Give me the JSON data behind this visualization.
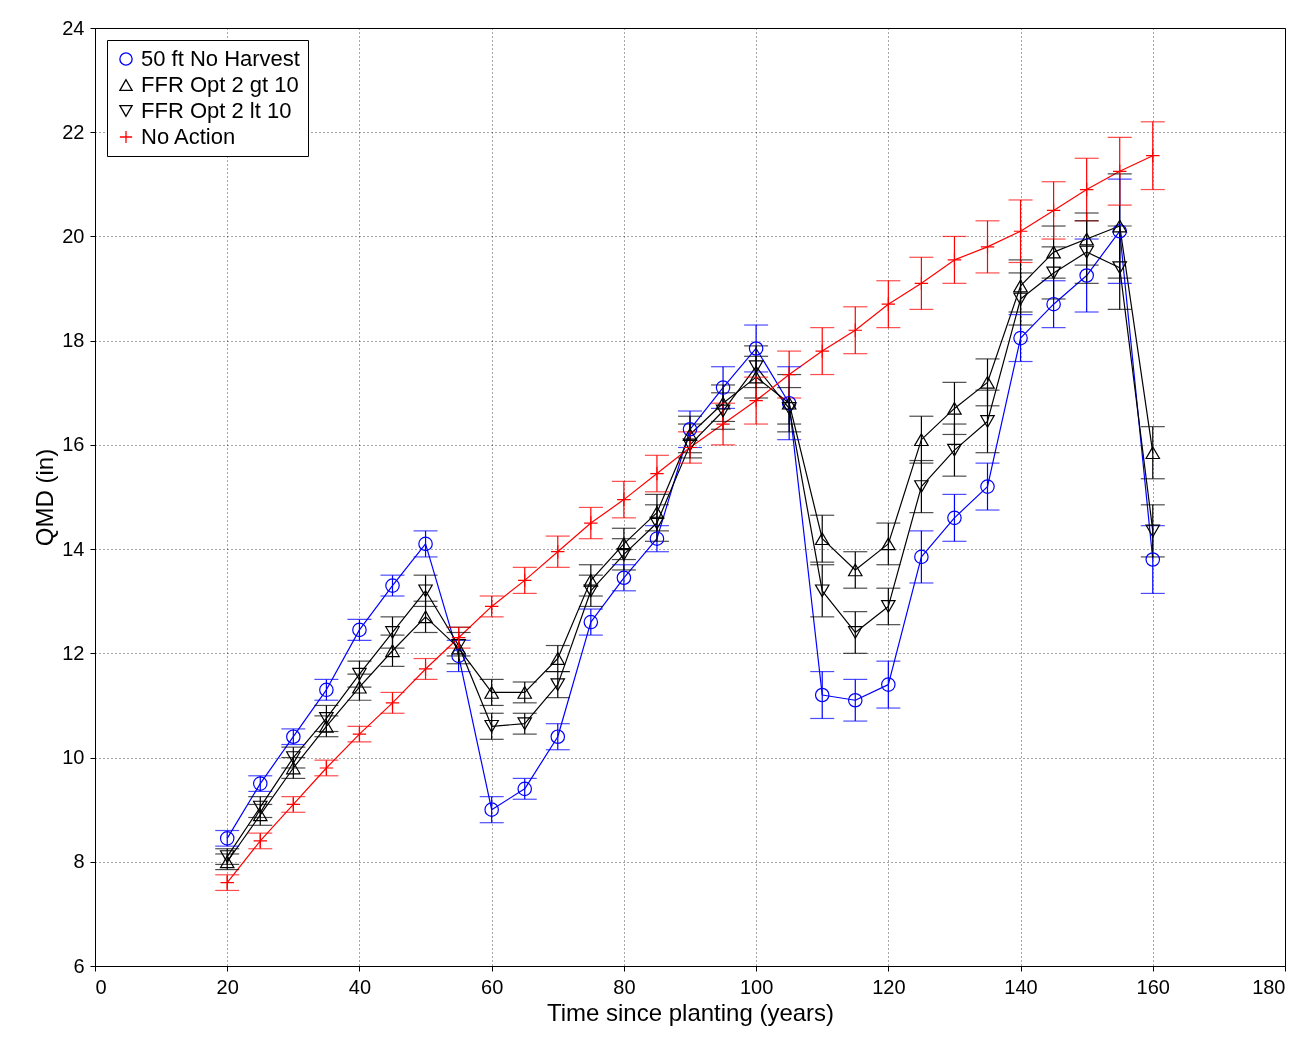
{
  "chart_data": {
    "type": "line",
    "xlabel": "Time since planting (years)",
    "ylabel": "QMD (in)",
    "x": [
      20,
      25,
      30,
      35,
      40,
      45,
      50,
      55,
      60,
      65,
      70,
      75,
      80,
      85,
      90,
      95,
      100,
      105,
      110,
      115,
      120,
      125,
      130,
      135,
      140,
      145,
      150,
      155,
      160
    ],
    "xlim": [
      0,
      180
    ],
    "xticks": [
      0,
      20,
      40,
      60,
      80,
      100,
      120,
      140,
      160,
      180
    ],
    "ylim": [
      6,
      24
    ],
    "yticks": [
      6,
      8,
      10,
      12,
      14,
      16,
      18,
      20,
      22,
      24
    ],
    "grid": true,
    "legend": "top left",
    "line_style": "solid",
    "series": [
      {
        "name": "50 ft No Harvest",
        "color": "#0000ff",
        "marker": "circle",
        "values": [
          8.45,
          9.5,
          10.4,
          11.3,
          12.45,
          13.3,
          14.1,
          11.95,
          9.0,
          9.4,
          10.4,
          12.6,
          13.45,
          14.2,
          16.3,
          17.1,
          17.85,
          16.8,
          11.2,
          11.1,
          11.4,
          13.85,
          14.6,
          15.2,
          18.05,
          18.7,
          19.25,
          20.1,
          13.8
        ],
        "errors": [
          0.15,
          0.15,
          0.15,
          0.2,
          0.2,
          0.2,
          0.25,
          0.3,
          0.25,
          0.2,
          0.25,
          0.25,
          0.25,
          0.25,
          0.35,
          0.4,
          0.45,
          [
            16.1,
            17.5
          ],
          0.45,
          0.4,
          0.45,
          0.5,
          0.45,
          0.45,
          0.45,
          0.45,
          0.7,
          1.0,
          0.65
        ]
      },
      {
        "name": "FFR Opt 2 gt 10",
        "color": "#000000",
        "marker": "triangle",
        "values": [
          8.0,
          8.9,
          9.8,
          10.6,
          11.35,
          12.05,
          12.7,
          12.1,
          11.25,
          11.25,
          11.9,
          13.4,
          14.1,
          14.7,
          16.2,
          16.8,
          17.3,
          16.8,
          14.2,
          13.6,
          14.1,
          16.1,
          16.7,
          17.2,
          19.05,
          19.7,
          19.95,
          20.2,
          15.85
        ],
        "errors": [
          0.15,
          0.2,
          0.2,
          0.2,
          0.25,
          0.3,
          0.3,
          [
            11.8,
            12.4
          ],
          0.25,
          0.2,
          0.25,
          0.3,
          0.3,
          0.35,
          0.35,
          0.35,
          0.4,
          [
            16.4,
            17.35
          ],
          0.45,
          0.35,
          0.4,
          0.45,
          0.5,
          0.45,
          0.5,
          0.5,
          0.5,
          1.0,
          0.5
        ]
      },
      {
        "name": "FFR Opt 2 lt 10",
        "color": "#000000",
        "marker": "triangle-down",
        "values": [
          8.1,
          9.05,
          10.0,
          10.75,
          11.6,
          12.4,
          13.2,
          12.15,
          10.6,
          10.65,
          11.4,
          13.2,
          13.9,
          14.5,
          16.0,
          16.65,
          17.5,
          16.7,
          13.2,
          12.4,
          12.9,
          15.2,
          15.9,
          16.45,
          18.8,
          19.3,
          19.7,
          19.4,
          14.35
        ],
        "errors": [
          0.15,
          0.2,
          0.2,
          0.25,
          0.25,
          0.3,
          0.3,
          [
            11.95,
            12.5
          ],
          0.25,
          0.2,
          0.25,
          0.3,
          0.3,
          0.35,
          [
            15.75,
            16.4
          ],
          0.35,
          0.4,
          [
            16.25,
            17.1
          ],
          0.5,
          0.4,
          0.35,
          0.5,
          0.5,
          0.6,
          0.5,
          0.5,
          0.6,
          0.8,
          0.5
        ]
      },
      {
        "name": "No Action",
        "color": "#ff0000",
        "marker": "cross",
        "values": [
          7.6,
          8.4,
          9.1,
          9.8,
          10.45,
          11.05,
          11.7,
          12.3,
          12.9,
          13.4,
          13.95,
          14.5,
          14.95,
          15.45,
          15.95,
          16.4,
          16.85,
          17.35,
          17.8,
          18.2,
          18.7,
          19.1,
          19.55,
          19.8,
          20.1,
          20.5,
          20.9,
          21.25,
          21.55
        ],
        "errors": [
          0.15,
          0.15,
          0.15,
          0.15,
          0.15,
          0.2,
          0.2,
          0.2,
          0.2,
          0.25,
          0.3,
          0.3,
          0.35,
          0.35,
          0.3,
          0.4,
          0.45,
          0.45,
          0.45,
          0.45,
          0.45,
          0.5,
          0.45,
          0.5,
          0.6,
          0.55,
          0.6,
          0.65,
          0.65
        ]
      }
    ]
  }
}
